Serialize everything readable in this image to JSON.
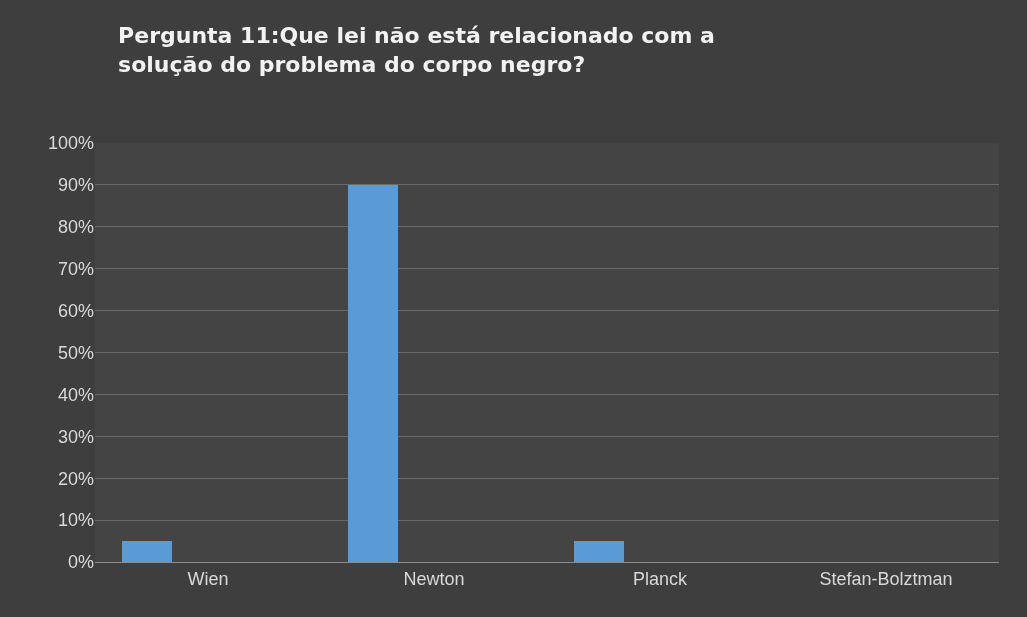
{
  "chart_data": {
    "type": "bar",
    "title": "Pergunta 11:Que lei não está relacionado com a solução do problema do corpo negro?",
    "categories": [
      "Wien",
      "Newton",
      "Planck",
      "Stefan-Bolztman"
    ],
    "values": [
      5,
      90,
      5,
      0
    ],
    "color": "#5b9bd5",
    "ylim": [
      0,
      100
    ],
    "yticks": [
      {
        "value": 0,
        "label": "0%"
      },
      {
        "value": 10,
        "label": "10%"
      },
      {
        "value": 20,
        "label": "20%"
      },
      {
        "value": 30,
        "label": "30%"
      },
      {
        "value": 40,
        "label": "40%"
      },
      {
        "value": 50,
        "label": "50%"
      },
      {
        "value": 60,
        "label": "60%"
      },
      {
        "value": 70,
        "label": "70%"
      },
      {
        "value": 80,
        "label": "80%"
      },
      {
        "value": 90,
        "label": "90%"
      },
      {
        "value": 100,
        "label": "100%"
      }
    ],
    "grid": "y",
    "legend": false
  }
}
